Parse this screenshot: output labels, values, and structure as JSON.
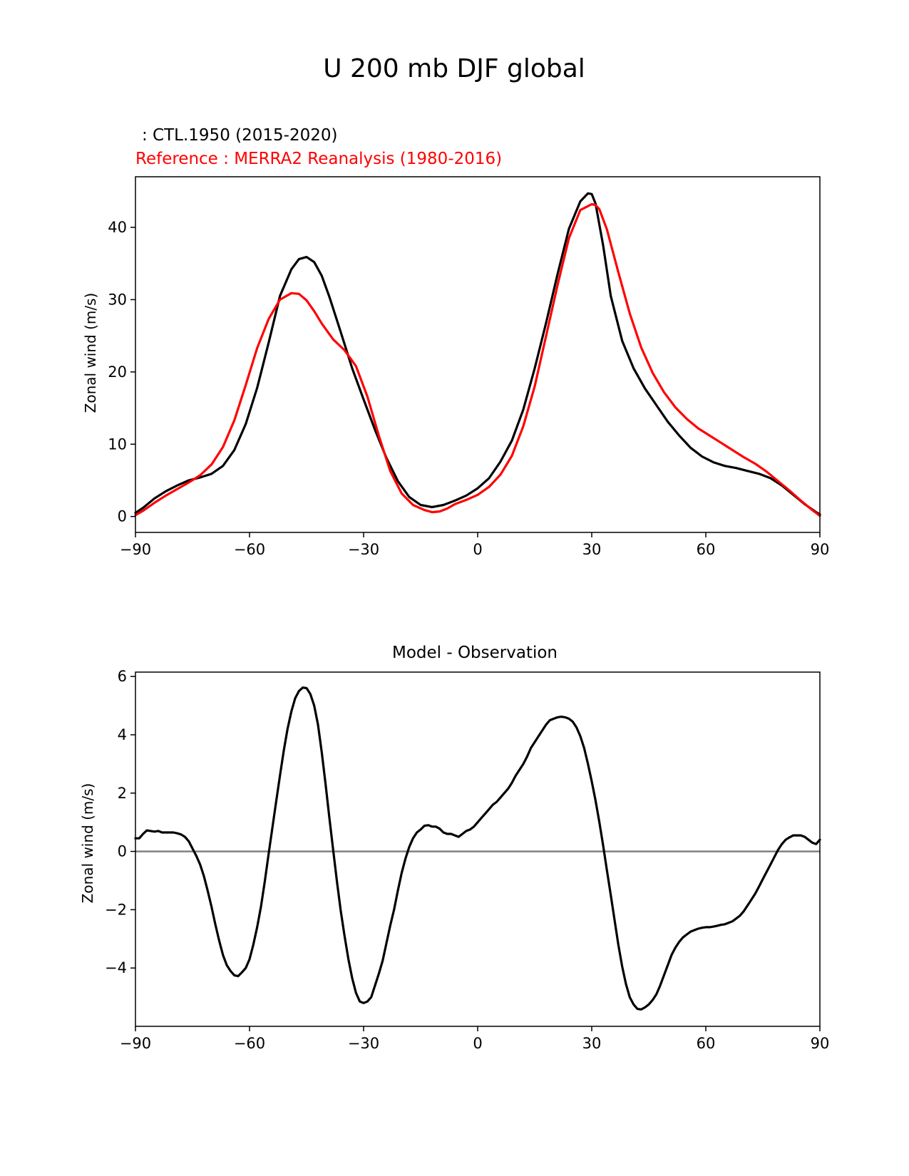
{
  "figure": {
    "title": "U 200 mb DJF global",
    "test_label": " : CTL.1950 (2015-2020)",
    "ref_label": "Reference : MERRA2 Reanalysis (1980-2016)"
  },
  "colors": {
    "test": "#000000",
    "reference": "#ff0000",
    "zero_line": "#808080",
    "axes": "#000000"
  },
  "chart_data": [
    {
      "type": "line",
      "title": "",
      "xlabel": "",
      "ylabel": "Zonal wind (m/s)",
      "xlim": [
        -90,
        90
      ],
      "ylim": [
        -2.2,
        47
      ],
      "xticks": [
        -90,
        -60,
        -30,
        0,
        30,
        60,
        90
      ],
      "xtick_labels": [
        "−90",
        "−60",
        "−30",
        "0",
        "30",
        "60",
        "90"
      ],
      "yticks": [
        0,
        10,
        20,
        30,
        40
      ],
      "ytick_labels": [
        "0",
        "10",
        "20",
        "30",
        "40"
      ],
      "series": [
        {
          "name": "CTL.1950 (2015-2020)",
          "color": "#000000",
          "x": [
            -90,
            -88,
            -85,
            -82,
            -79,
            -76,
            -73,
            -70,
            -67,
            -64,
            -61,
            -58,
            -55,
            -52,
            -49,
            -47,
            -45,
            -43,
            -41,
            -39,
            -36,
            -33,
            -30,
            -27,
            -24,
            -21,
            -18,
            -15,
            -12,
            -9,
            -6,
            -3,
            0,
            3,
            6,
            9,
            12,
            15,
            18,
            21,
            24,
            27,
            29,
            30,
            31,
            33,
            35,
            38,
            41,
            44,
            47,
            50,
            53,
            56,
            59,
            62,
            65,
            68,
            71,
            74,
            77,
            80,
            83,
            86,
            89,
            90
          ],
          "y": [
            0.5,
            1.2,
            2.5,
            3.5,
            4.3,
            5.0,
            5.4,
            5.9,
            7.0,
            9.2,
            12.8,
            17.8,
            24,
            30.5,
            34.2,
            35.6,
            35.9,
            35.2,
            33.3,
            30.4,
            25.5,
            20.5,
            16.2,
            12.0,
            8.1,
            4.9,
            2.7,
            1.6,
            1.3,
            1.6,
            2.2,
            2.9,
            3.9,
            5.3,
            7.6,
            10.5,
            14.8,
            20.5,
            26.8,
            33.5,
            39.8,
            43.6,
            44.7,
            44.6,
            43.3,
            37.5,
            30.5,
            24.3,
            20.5,
            17.7,
            15.4,
            13.1,
            11.2,
            9.5,
            8.3,
            7.5,
            7.0,
            6.7,
            6.3,
            5.9,
            5.3,
            4.3,
            3.0,
            1.7,
            0.6,
            0.3
          ]
        },
        {
          "name": "MERRA2 Reanalysis (1980-2016)",
          "color": "#ff0000",
          "x": [
            -90,
            -88,
            -85,
            -82,
            -79,
            -76,
            -73,
            -70,
            -67,
            -64,
            -61,
            -58,
            -55,
            -52,
            -49,
            -47,
            -45,
            -43,
            -41,
            -38,
            -35,
            -32,
            -29,
            -26,
            -23,
            -20,
            -17,
            -14,
            -12,
            -10,
            -8,
            -6,
            -3,
            0,
            3,
            6,
            9,
            12,
            15,
            18,
            21,
            24,
            27,
            30,
            31,
            32,
            34,
            37,
            40,
            43,
            46,
            49,
            52,
            55,
            58,
            61,
            64,
            67,
            70,
            73,
            76,
            79,
            82,
            85,
            88,
            90
          ],
          "y": [
            0.2,
            0.8,
            1.9,
            2.9,
            3.8,
            4.7,
            5.7,
            7.2,
            9.6,
            13.3,
            18.2,
            23.3,
            27.3,
            30.0,
            30.9,
            30.8,
            29.9,
            28.4,
            26.7,
            24.5,
            23.0,
            20.8,
            16.6,
            11.2,
            6.3,
            3.2,
            1.6,
            0.9,
            0.6,
            0.7,
            1.1,
            1.7,
            2.3,
            3.0,
            4.1,
            5.8,
            8.4,
            12.5,
            18.0,
            25.0,
            32.0,
            38.5,
            42.4,
            43.2,
            43.1,
            42.5,
            39.7,
            33.8,
            28.1,
            23.4,
            19.9,
            17.2,
            15.1,
            13.5,
            12.2,
            11.2,
            10.2,
            9.2,
            8.2,
            7.3,
            6.2,
            4.9,
            3.6,
            2.2,
            0.9,
            0.1
          ]
        }
      ]
    },
    {
      "type": "line",
      "title": "Model - Observation",
      "xlabel": "",
      "ylabel": "Zonal wind (m/s)",
      "xlim": [
        -90,
        90
      ],
      "ylim": [
        -6.0,
        6.15
      ],
      "xticks": [
        -90,
        -60,
        -30,
        0,
        30,
        60,
        90
      ],
      "xtick_labels": [
        "−90",
        "−60",
        "−30",
        "0",
        "30",
        "60",
        "90"
      ],
      "yticks": [
        -4,
        -2,
        0,
        2,
        4,
        6
      ],
      "ytick_labels": [
        "−4",
        "−2",
        "0",
        "2",
        "4",
        "6"
      ],
      "zero_line": true,
      "series": [
        {
          "name": "Model - Observation",
          "color": "#000000",
          "x": [
            -90,
            -89,
            -88,
            -87,
            -86,
            -85,
            -84,
            -83,
            -82,
            -81,
            -80,
            -79,
            -78,
            -77,
            -76,
            -75,
            -74,
            -73,
            -72,
            -71,
            -70,
            -69,
            -68,
            -67,
            -66,
            -65,
            -64,
            -63,
            -62,
            -61,
            -60,
            -59,
            -58,
            -57,
            -56,
            -55,
            -54,
            -53,
            -52,
            -51,
            -50,
            -49,
            -48,
            -47,
            -46,
            -45,
            -44,
            -43,
            -42,
            -41,
            -40,
            -39,
            -38,
            -37,
            -36,
            -35,
            -34,
            -33,
            -32,
            -31,
            -30,
            -29,
            -28,
            -27,
            -26,
            -25,
            -24,
            -23,
            -22,
            -21,
            -20,
            -19,
            -18,
            -17,
            -16,
            -15,
            -14,
            -13,
            -12,
            -11,
            -10,
            -9,
            -8,
            -7,
            -6,
            -5,
            -4,
            -3,
            -2,
            -1,
            0,
            1,
            2,
            3,
            4,
            5,
            6,
            7,
            8,
            9,
            10,
            11,
            12,
            13,
            14,
            15,
            16,
            17,
            18,
            19,
            20,
            21,
            22,
            23,
            24,
            25,
            26,
            27,
            28,
            29,
            30,
            31,
            32,
            33,
            34,
            35,
            36,
            37,
            38,
            39,
            40,
            41,
            42,
            43,
            44,
            45,
            46,
            47,
            48,
            49,
            50,
            51,
            52,
            53,
            54,
            55,
            56,
            57,
            58,
            59,
            60,
            61,
            62,
            63,
            64,
            65,
            66,
            67,
            68,
            69,
            70,
            71,
            72,
            73,
            74,
            75,
            76,
            77,
            78,
            79,
            80,
            81,
            82,
            83,
            84,
            85,
            86,
            87,
            88,
            89,
            90
          ],
          "y": [
            0.45,
            0.45,
            0.6,
            0.72,
            0.7,
            0.68,
            0.7,
            0.65,
            0.65,
            0.65,
            0.65,
            0.62,
            0.58,
            0.5,
            0.35,
            0.1,
            -0.15,
            -0.45,
            -0.85,
            -1.35,
            -1.9,
            -2.5,
            -3.05,
            -3.55,
            -3.9,
            -4.1,
            -4.25,
            -4.28,
            -4.15,
            -4.0,
            -3.7,
            -3.2,
            -2.6,
            -1.9,
            -1.05,
            -0.1,
            0.8,
            1.7,
            2.6,
            3.45,
            4.2,
            4.8,
            5.25,
            5.5,
            5.62,
            5.6,
            5.4,
            5.0,
            4.35,
            3.4,
            2.3,
            1.15,
            0.05,
            -1.05,
            -2.05,
            -2.9,
            -3.7,
            -4.35,
            -4.85,
            -5.15,
            -5.2,
            -5.15,
            -5.0,
            -4.6,
            -4.2,
            -3.75,
            -3.15,
            -2.55,
            -2.0,
            -1.35,
            -0.75,
            -0.25,
            0.15,
            0.45,
            0.65,
            0.75,
            0.88,
            0.9,
            0.85,
            0.85,
            0.78,
            0.65,
            0.6,
            0.6,
            0.55,
            0.5,
            0.6,
            0.7,
            0.75,
            0.85,
            1.0,
            1.15,
            1.3,
            1.45,
            1.6,
            1.7,
            1.85,
            2.0,
            2.15,
            2.35,
            2.6,
            2.8,
            3.0,
            3.25,
            3.55,
            3.75,
            3.95,
            4.15,
            4.35,
            4.5,
            4.55,
            4.6,
            4.62,
            4.6,
            4.55,
            4.45,
            4.25,
            3.95,
            3.55,
            3.0,
            2.4,
            1.75,
            1.0,
            0.2,
            -0.65,
            -1.5,
            -2.35,
            -3.2,
            -3.95,
            -4.55,
            -5.0,
            -5.25,
            -5.4,
            -5.42,
            -5.35,
            -5.25,
            -5.1,
            -4.9,
            -4.6,
            -4.25,
            -3.9,
            -3.55,
            -3.3,
            -3.1,
            -2.95,
            -2.85,
            -2.75,
            -2.7,
            -2.65,
            -2.62,
            -2.6,
            -2.6,
            -2.58,
            -2.55,
            -2.52,
            -2.5,
            -2.45,
            -2.4,
            -2.3,
            -2.2,
            -2.05,
            -1.85,
            -1.65,
            -1.45,
            -1.2,
            -0.95,
            -0.7,
            -0.45,
            -0.2,
            0.05,
            0.25,
            0.4,
            0.48,
            0.55,
            0.55,
            0.55,
            0.5,
            0.4,
            0.3,
            0.25,
            0.4
          ]
        }
      ]
    }
  ]
}
